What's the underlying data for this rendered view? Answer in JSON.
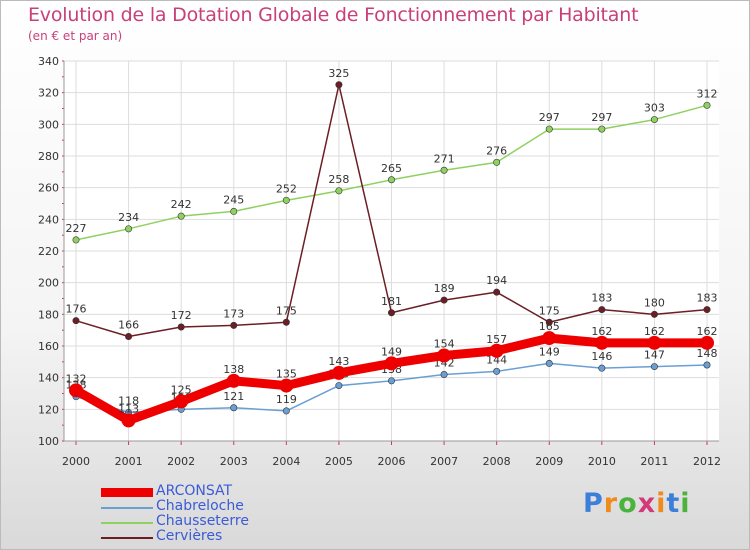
{
  "title": "Evolution de la Dotation Globale de Fonctionnement par Habitant",
  "subtitle": "(en € et par an)",
  "logo": [
    "P",
    "r",
    "o",
    "x",
    "i",
    "t",
    "i"
  ],
  "colors": {
    "title": "#c8407a",
    "legend_text": "#3b5bd6",
    "grid": "#dddddd",
    "axis_ticks": "#cc3366"
  },
  "chart_data": {
    "type": "line",
    "title": "Evolution de la Dotation Globale de Fonctionnement par Habitant",
    "ylabel": "(en € et par an)",
    "xlabel": "",
    "ylim": [
      100,
      340
    ],
    "yticks": [
      100,
      120,
      140,
      160,
      180,
      200,
      220,
      240,
      260,
      280,
      300,
      320,
      340
    ],
    "categories": [
      "2000",
      "2001",
      "2002",
      "2003",
      "2004",
      "2005",
      "2006",
      "2007",
      "2008",
      "2009",
      "2010",
      "2011",
      "2012"
    ],
    "grid": true,
    "legend_position": "bottom-left",
    "series": [
      {
        "name": "Chabreloche",
        "color": "#6a9fd4",
        "values": [
          128,
          118,
          120,
          121,
          119,
          135,
          138,
          142,
          144,
          149,
          146,
          147,
          148
        ]
      },
      {
        "name": "Chausseterre",
        "color": "#8fd160",
        "values": [
          227,
          234,
          242,
          245,
          252,
          258,
          265,
          271,
          276,
          297,
          297,
          303,
          312
        ]
      },
      {
        "name": "Cervières",
        "color": "#6b1f25",
        "values": [
          176,
          166,
          172,
          173,
          175,
          325,
          181,
          189,
          194,
          175,
          183,
          180,
          183
        ]
      },
      {
        "name": "ARCONSAT",
        "color": "#ee0000",
        "values": [
          132,
          113,
          125,
          138,
          135,
          143,
          149,
          154,
          157,
          165,
          162,
          162,
          162
        ]
      }
    ],
    "legend_order": [
      "ARCONSAT",
      "Chabreloche",
      "Chausseterre",
      "Cervières"
    ]
  }
}
